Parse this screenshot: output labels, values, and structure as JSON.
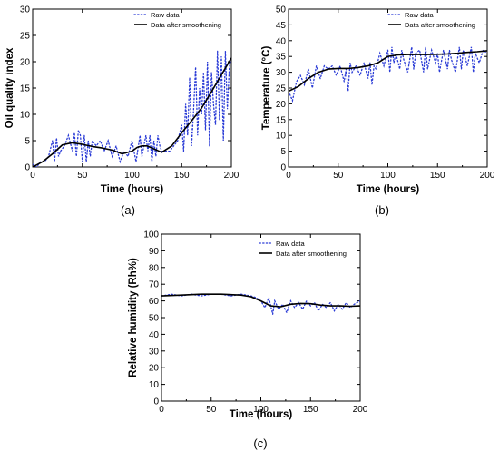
{
  "chart_data": [
    {
      "id": "a",
      "type": "line",
      "panel_label": "(a)",
      "xlabel": "Time (hours)",
      "ylabel": "Oil quality index",
      "xlim": [
        0,
        200
      ],
      "ylim": [
        0,
        30
      ],
      "xticks": [
        0,
        50,
        100,
        150,
        200
      ],
      "yticks": [
        0,
        5,
        10,
        15,
        20,
        25,
        30
      ],
      "legend_position": "top-right",
      "grid": false,
      "series": [
        {
          "name": "Raw data",
          "style": "dotted",
          "color": "#2a3bd6",
          "x": [
            0,
            4,
            8,
            12,
            16,
            20,
            22,
            24,
            26,
            28,
            32,
            36,
            40,
            42,
            44,
            46,
            48,
            50,
            52,
            54,
            56,
            58,
            60,
            64,
            68,
            72,
            76,
            80,
            84,
            88,
            92,
            96,
            100,
            104,
            108,
            110,
            112,
            114,
            116,
            118,
            120,
            122,
            124,
            126,
            128,
            130,
            134,
            138,
            142,
            146,
            150,
            152,
            154,
            156,
            158,
            160,
            162,
            164,
            166,
            168,
            170,
            172,
            174,
            176,
            178,
            180,
            182,
            184,
            186,
            188,
            190,
            192,
            194,
            196,
            198,
            200
          ],
          "values": [
            0.5,
            0,
            1,
            1,
            2,
            5,
            1,
            5.5,
            2,
            3,
            4,
            6,
            3,
            6.5,
            2,
            7,
            6,
            1,
            6,
            1,
            5,
            2,
            5,
            4,
            5,
            3,
            5,
            2,
            4,
            1,
            3,
            2,
            5,
            1,
            6,
            2,
            4,
            6,
            3,
            6,
            1,
            5,
            2,
            6,
            4,
            3,
            3,
            3,
            4,
            5,
            8,
            3,
            12,
            6,
            17,
            4,
            11,
            19,
            6,
            15,
            10,
            18,
            7,
            20,
            4,
            18,
            12,
            8,
            22,
            9,
            21,
            5,
            22,
            11,
            19,
            21
          ]
        },
        {
          "name": "Data after smoothening",
          "style": "solid",
          "color": "#000000",
          "x": [
            0,
            10,
            20,
            30,
            40,
            50,
            60,
            70,
            80,
            90,
            100,
            105,
            110,
            115,
            120,
            130,
            140,
            150,
            160,
            170,
            180,
            190,
            200
          ],
          "values": [
            0,
            1,
            2.5,
            4.2,
            4.6,
            4.3,
            3.9,
            3.6,
            3.2,
            2.5,
            3.0,
            3.7,
            4.0,
            4.0,
            3.6,
            2.8,
            4.0,
            6.5,
            8.8,
            11.2,
            14.3,
            17.5,
            20.7
          ]
        }
      ]
    },
    {
      "id": "b",
      "type": "line",
      "panel_label": "(b)",
      "xlabel": "Time (hours)",
      "ylabel": "Temperature (°C)",
      "xlim": [
        0,
        200
      ],
      "ylim": [
        0,
        50
      ],
      "xticks": [
        0,
        50,
        100,
        150,
        200
      ],
      "yticks": [
        0,
        5,
        10,
        15,
        20,
        25,
        30,
        35,
        40,
        45,
        50
      ],
      "legend_position": "top-right",
      "grid": false,
      "series": [
        {
          "name": "Raw data",
          "style": "dotted",
          "color": "#2a3bd6",
          "x": [
            0,
            4,
            8,
            12,
            16,
            20,
            24,
            28,
            32,
            36,
            40,
            44,
            48,
            52,
            56,
            58,
            60,
            62,
            64,
            68,
            72,
            76,
            80,
            82,
            84,
            86,
            88,
            92,
            96,
            100,
            102,
            104,
            106,
            108,
            112,
            114,
            116,
            120,
            124,
            126,
            128,
            132,
            136,
            138,
            140,
            144,
            148,
            150,
            152,
            156,
            160,
            162,
            164,
            168,
            172,
            174,
            176,
            180,
            184,
            186,
            188,
            192,
            196,
            200
          ],
          "values": [
            24,
            21,
            27,
            29,
            26,
            31,
            25,
            32,
            28,
            32,
            31,
            32,
            29,
            32,
            27,
            31,
            24,
            33,
            30,
            32,
            29,
            33,
            28,
            33,
            26,
            32,
            31,
            36,
            32,
            37,
            30,
            38,
            33,
            36,
            31,
            37,
            34,
            30,
            38,
            31,
            36,
            37,
            30,
            38,
            31,
            37,
            33,
            36,
            30,
            37,
            31,
            37,
            34,
            30,
            38,
            31,
            37,
            32,
            38,
            30,
            36,
            33,
            37,
            36
          ]
        },
        {
          "name": "Data after smoothening",
          "style": "solid",
          "color": "#000000",
          "x": [
            0,
            10,
            20,
            30,
            40,
            50,
            60,
            70,
            80,
            90,
            100,
            110,
            120,
            130,
            140,
            150,
            160,
            170,
            180,
            190,
            200
          ],
          "values": [
            24,
            25.5,
            28,
            30,
            31,
            31.2,
            31.2,
            31.5,
            32,
            33,
            35,
            35.5,
            35.6,
            35.6,
            35.6,
            35.7,
            35.8,
            36,
            36.3,
            36.5,
            36.8
          ]
        }
      ]
    },
    {
      "id": "c",
      "type": "line",
      "panel_label": "(c)",
      "xlabel": "Time (hours)",
      "ylabel": "Relative humidity (Rh%)",
      "xlim": [
        0,
        200
      ],
      "ylim": [
        0,
        100
      ],
      "xticks": [
        0,
        50,
        100,
        150,
        200
      ],
      "yticks": [
        0,
        10,
        20,
        30,
        40,
        50,
        60,
        70,
        80,
        90,
        100
      ],
      "legend_position": "top-right",
      "grid": false,
      "series": [
        {
          "name": "Raw data",
          "style": "dotted",
          "color": "#2a3bd6",
          "x": [
            0,
            10,
            20,
            30,
            40,
            50,
            60,
            70,
            80,
            90,
            95,
            100,
            104,
            108,
            112,
            114,
            118,
            122,
            126,
            130,
            134,
            138,
            142,
            146,
            150,
            154,
            158,
            162,
            166,
            170,
            174,
            178,
            182,
            186,
            190,
            194,
            200
          ],
          "values": [
            63,
            64,
            63,
            64,
            63,
            64,
            64,
            63,
            64,
            63,
            62,
            60,
            56,
            62,
            52,
            60,
            55,
            58,
            53,
            60,
            56,
            59,
            55,
            60,
            57,
            59,
            54,
            58,
            56,
            59,
            54,
            58,
            55,
            59,
            56,
            58,
            60
          ]
        },
        {
          "name": "Data after smoothening",
          "style": "solid",
          "color": "#000000",
          "x": [
            0,
            20,
            40,
            60,
            80,
            90,
            100,
            110,
            120,
            130,
            140,
            150,
            160,
            170,
            180,
            190,
            200
          ],
          "values": [
            63,
            63.5,
            64,
            64,
            63.5,
            62.5,
            60,
            57,
            56.5,
            58,
            58.5,
            58.3,
            57.5,
            57,
            57,
            56.8,
            57
          ]
        }
      ]
    }
  ]
}
